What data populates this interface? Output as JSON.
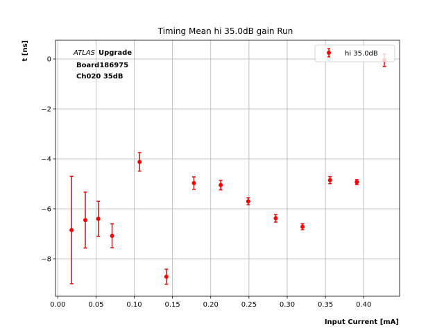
{
  "chart_data": {
    "type": "scatter",
    "title": "Timing Mean hi 35.0dB gain Run",
    "xlabel": "Input Current [mA]",
    "ylabel": "t [ns]",
    "xlim": [
      -0.003,
      0.447
    ],
    "ylim": [
      -9.5,
      0.75
    ],
    "xticks": [
      0.0,
      0.05,
      0.1,
      0.15,
      0.2,
      0.25,
      0.3,
      0.35,
      0.4
    ],
    "xtick_labels": [
      "0.00",
      "0.05",
      "0.10",
      "0.15",
      "0.20",
      "0.25",
      "0.30",
      "0.35",
      "0.40"
    ],
    "yticks": [
      -8,
      -6,
      -4,
      -2,
      0
    ],
    "ytick_labels": [
      "−8",
      "−6",
      "−4",
      "−2",
      "0"
    ],
    "grid": true,
    "legend_position": "top-right",
    "annotation": {
      "atlas": "ATLAS",
      "upgrade": "Upgrade",
      "board": "Board186975",
      "channel": "Ch020 35dB"
    },
    "series": [
      {
        "name": "hi 35.0dB",
        "color": "#ff0000",
        "marker": "circle",
        "points": [
          {
            "x": 0.018,
            "y": -6.85,
            "err": 2.15
          },
          {
            "x": 0.036,
            "y": -6.45,
            "err": 1.12
          },
          {
            "x": 0.053,
            "y": -6.4,
            "err": 0.7
          },
          {
            "x": 0.071,
            "y": -7.08,
            "err": 0.48
          },
          {
            "x": 0.107,
            "y": -4.12,
            "err": 0.37
          },
          {
            "x": 0.142,
            "y": -8.72,
            "err": 0.3
          },
          {
            "x": 0.178,
            "y": -4.97,
            "err": 0.25
          },
          {
            "x": 0.213,
            "y": -5.05,
            "err": 0.19
          },
          {
            "x": 0.249,
            "y": -5.7,
            "err": 0.14
          },
          {
            "x": 0.285,
            "y": -6.38,
            "err": 0.15
          },
          {
            "x": 0.32,
            "y": -6.72,
            "err": 0.12
          },
          {
            "x": 0.356,
            "y": -4.85,
            "err": 0.14
          },
          {
            "x": 0.391,
            "y": -4.93,
            "err": 0.1
          },
          {
            "x": 0.427,
            "y": -0.05,
            "err": 0.25
          }
        ]
      }
    ]
  }
}
